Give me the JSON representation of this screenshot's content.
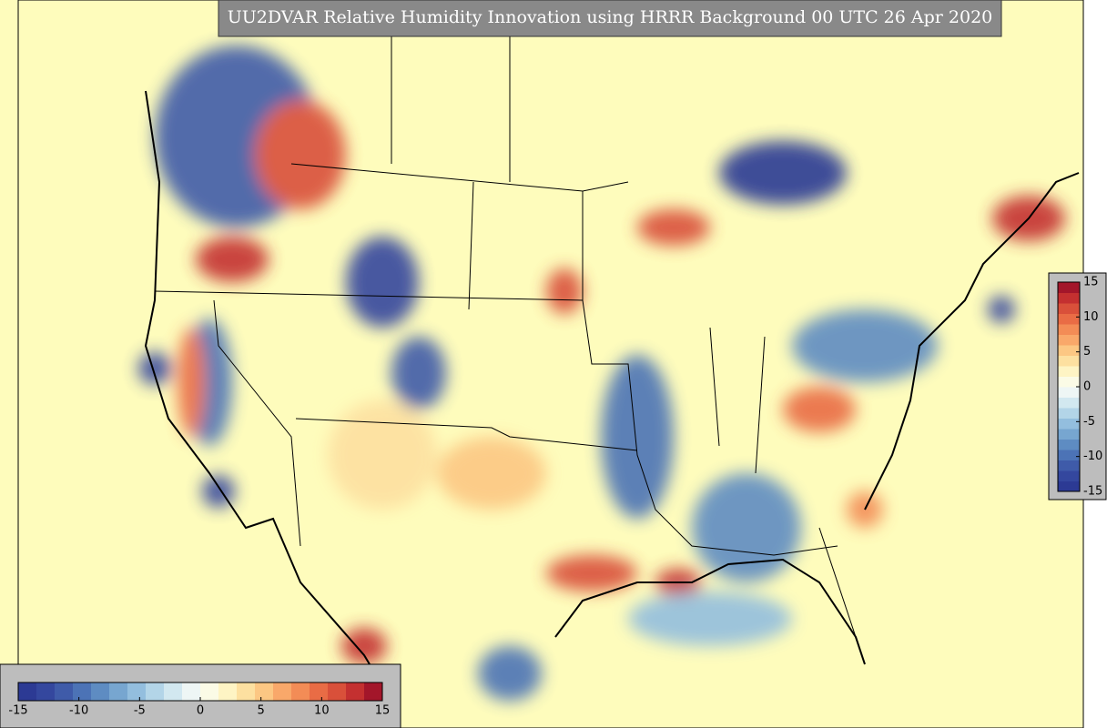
{
  "header": {
    "title": "UU2DVAR Relative Humidity Innovation using HRRR Background 00 UTC 26 Apr 2020"
  },
  "colorbar": {
    "ticks": [
      -15,
      -10,
      -5,
      0,
      5,
      10,
      15
    ],
    "range": [
      -15,
      15
    ],
    "colors": [
      "#2c3a94",
      "#34479e",
      "#3f5ba9",
      "#4c73b6",
      "#5e8cc2",
      "#77a6d0",
      "#93bede",
      "#b3d5e8",
      "#d2e8f0",
      "#eef6f5",
      "#fbfbe6",
      "#fef4c4",
      "#fde0a0",
      "#fcc783",
      "#f9a86a",
      "#f38c56",
      "#e96c45",
      "#d9503a",
      "#c43030",
      "#a3162a"
    ]
  }
}
